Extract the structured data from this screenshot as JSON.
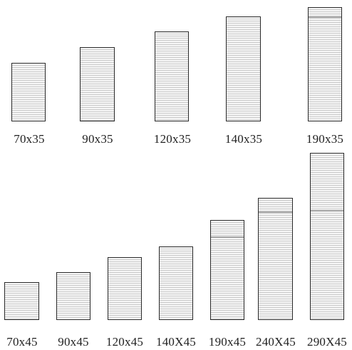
{
  "row1": {
    "labels": [
      "70x35",
      "90x35",
      "120x35",
      "140x35",
      "190x35"
    ]
  },
  "row2": {
    "labels": [
      "70x45",
      "90x45",
      "120x45",
      "140X45",
      "190x45",
      "240X45",
      "290X45"
    ]
  }
}
